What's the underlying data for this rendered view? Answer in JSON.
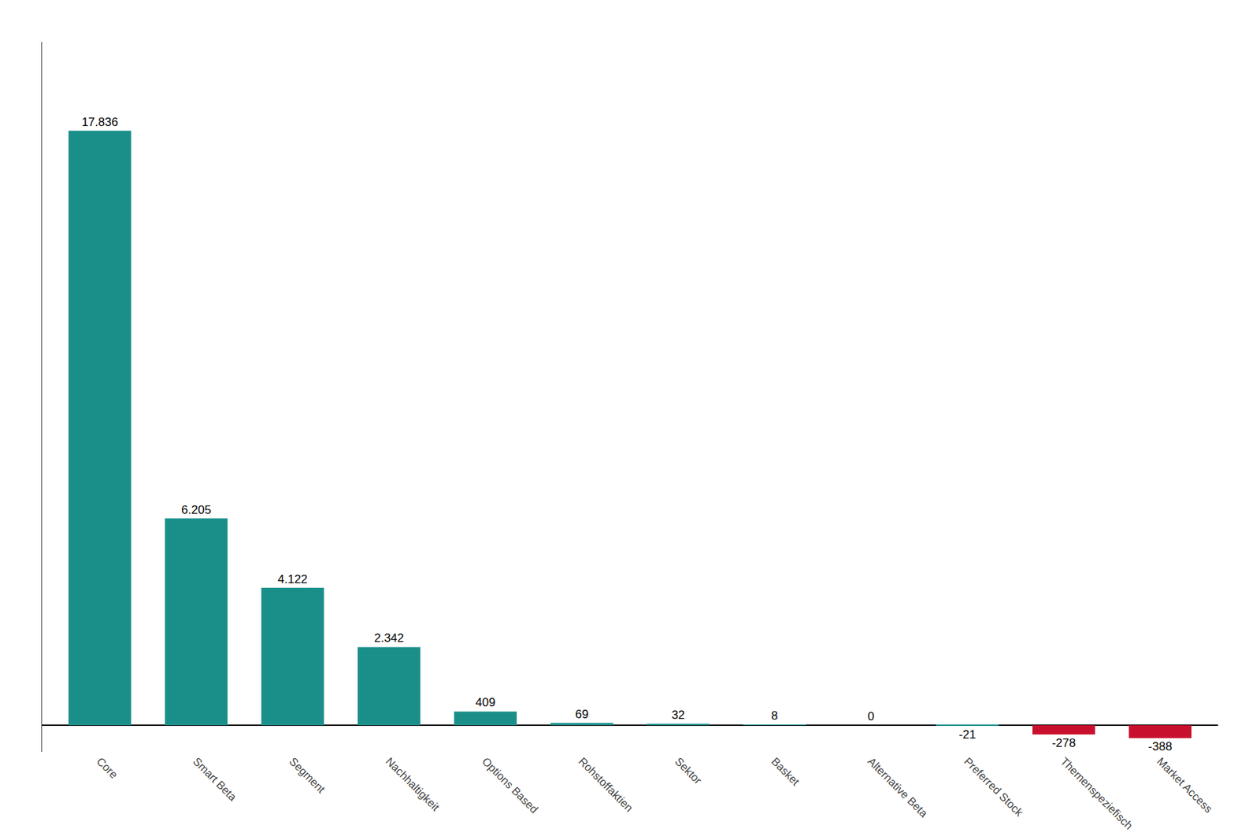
{
  "chart_data": {
    "type": "bar",
    "categories": [
      "Core",
      "Smart Beta",
      "Segment",
      "Nachhaltigkeit",
      "Options Based",
      "Rohstoffaktien",
      "Sektor",
      "Basket",
      "Alternative Beta",
      "Preferred Stock",
      "Themenspeziefisch",
      "Market Access"
    ],
    "values": [
      17836,
      6205,
      4122,
      2342,
      409,
      69,
      32,
      8,
      0,
      -21,
      -278,
      -388
    ],
    "value_labels": [
      "17.836",
      "6.205",
      "4.122",
      "2.342",
      "409",
      "69",
      "32",
      "8",
      "0",
      "-21",
      "-278",
      "-388"
    ],
    "colors": [
      "#1a8f8a",
      "#1a8f8a",
      "#1a8f8a",
      "#1a8f8a",
      "#1a8f8a",
      "#1a8f8a",
      "#1a8f8a",
      "#1a8f8a",
      "#1a8f8a",
      "#1a8f8a",
      "#C8102E",
      "#C8102E"
    ],
    "ylim": [
      -800,
      20500
    ],
    "grid": false,
    "tick_labels": "x",
    "data_labels": true
  }
}
